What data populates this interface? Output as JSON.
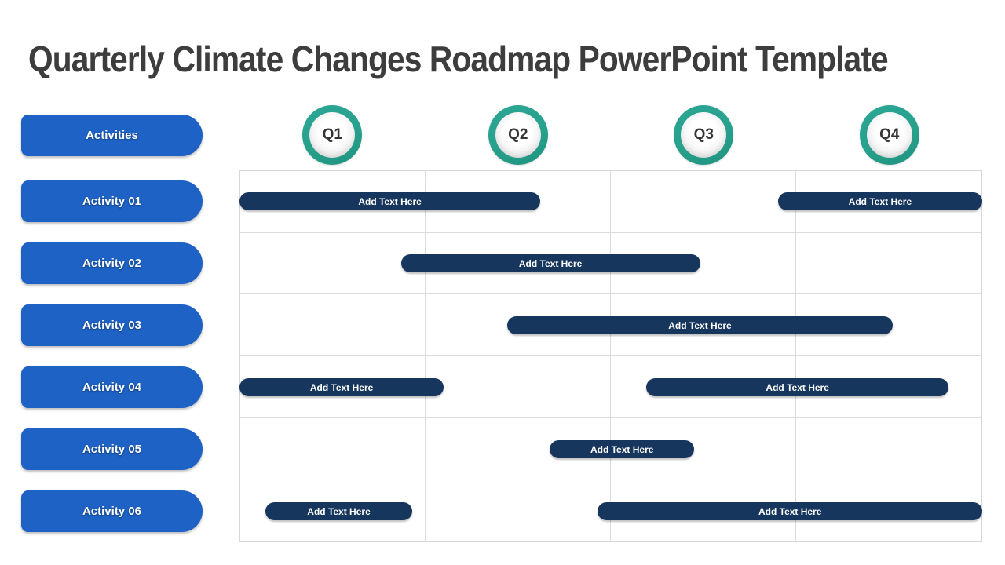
{
  "slide": {
    "title": "Quarterly Climate Changes Roadmap PowerPoint Template"
  },
  "activities_column": {
    "header": "Activities",
    "items": [
      "Activity 01",
      "Activity 02",
      "Activity 03",
      "Activity 04",
      "Activity 05",
      "Activity 06"
    ]
  },
  "quarters": [
    "Q1",
    "Q2",
    "Q3",
    "Q4"
  ],
  "gantt": {
    "placeholder_label": "Add Text Here",
    "quarter_count": 4,
    "bars": [
      {
        "activity_index": 0,
        "start_quarter": 0.0,
        "end_quarter": 1.62
      },
      {
        "activity_index": 0,
        "start_quarter": 2.9,
        "end_quarter": 4.0
      },
      {
        "activity_index": 1,
        "start_quarter": 0.87,
        "end_quarter": 2.48
      },
      {
        "activity_index": 2,
        "start_quarter": 1.44,
        "end_quarter": 3.52
      },
      {
        "activity_index": 3,
        "start_quarter": 0.0,
        "end_quarter": 1.1
      },
      {
        "activity_index": 3,
        "start_quarter": 2.19,
        "end_quarter": 3.82
      },
      {
        "activity_index": 4,
        "start_quarter": 1.67,
        "end_quarter": 2.45
      },
      {
        "activity_index": 5,
        "start_quarter": 0.14,
        "end_quarter": 0.93
      },
      {
        "activity_index": 5,
        "start_quarter": 1.93,
        "end_quarter": 4.0
      }
    ]
  },
  "colors": {
    "pill_blue": "#1d62c4",
    "bar_navy": "#17365d",
    "ring_teal": "#27a08c",
    "title_gray": "#3d3d3d",
    "grid_line": "#d7d7d7"
  }
}
